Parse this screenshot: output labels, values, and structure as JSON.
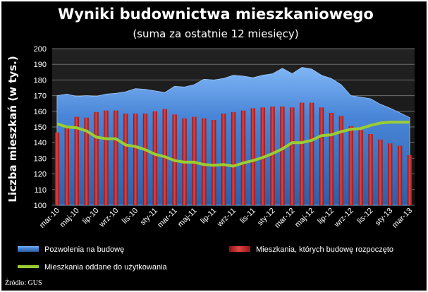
{
  "chart_data": {
    "type": "bar+area+line",
    "title": "Wyniki budownictwa mieszkaniowego",
    "subtitle": "(suma za ostatnie 12 miesięcy)",
    "ylabel": "Liczba mieszkań (w tys.)",
    "xlabel": "",
    "ylim": [
      100,
      200
    ],
    "yticks": [
      "100",
      "110",
      "120",
      "130",
      "140",
      "150",
      "160",
      "170",
      "180",
      "190",
      "200"
    ],
    "grid": true,
    "categories": [
      "mar-10",
      "kwi-10",
      "maj-10",
      "cze-10",
      "lip-10",
      "sie-10",
      "wrz-10",
      "paź-10",
      "lis-10",
      "gru-10",
      "sty-11",
      "lut-11",
      "mar-11",
      "kwi-11",
      "maj-11",
      "cze-11",
      "lip-11",
      "sie-11",
      "wrz-11",
      "paź-11",
      "lis-11",
      "gru-11",
      "sty-12",
      "lut-12",
      "mar-12",
      "kwi-12",
      "maj-12",
      "cze-12",
      "lip-12",
      "sie-12",
      "wrz-12",
      "paź-12",
      "lis-12",
      "gru-12",
      "sty-13",
      "lut-13",
      "mar-13"
    ],
    "x_tick_labels": [
      "mar-10",
      "maj-10",
      "lip-10",
      "wrz-10",
      "lis-10",
      "sty-11",
      "mar-11",
      "maj-11",
      "lip-11",
      "wrz-11",
      "lis-11",
      "sty-12",
      "mar-12",
      "maj-12",
      "lip-12",
      "wrz-12",
      "lis-12",
      "sty-13",
      "mar-13"
    ],
    "series": [
      {
        "name": "Pozwolenia na budowę",
        "type": "area",
        "color": "#4f8fe0",
        "values": [
          170,
          171,
          169.5,
          170,
          169.5,
          171,
          171.5,
          172.5,
          174.5,
          174,
          173,
          172,
          176,
          175.5,
          177,
          180.5,
          180,
          181,
          183,
          182.5,
          181.5,
          183,
          184,
          187.5,
          184,
          188,
          187,
          183,
          181,
          177,
          170,
          169,
          168,
          164.5,
          162,
          159,
          156
        ]
      },
      {
        "name": "Mieszkania, których budowę rozpoczęto",
        "type": "bar",
        "color": "#d62e2e",
        "values": [
          146.5,
          150,
          156.5,
          156,
          159.5,
          160.5,
          160.5,
          158.5,
          158.5,
          158.5,
          160,
          161.5,
          158,
          155.5,
          156.5,
          155.5,
          154.5,
          158.5,
          159.5,
          160.5,
          162,
          162.5,
          163,
          163,
          162.5,
          165.5,
          165.5,
          162.5,
          159,
          157,
          150.5,
          148,
          145.5,
          142,
          139.5,
          138,
          132
        ]
      },
      {
        "name": "Mieszkania oddane do użytkowania",
        "type": "line",
        "color": "#9acd32",
        "values": [
          152,
          150,
          149.5,
          147.5,
          143.5,
          142.5,
          142.5,
          138.5,
          137.5,
          135.5,
          132.5,
          131,
          128.5,
          127.5,
          127.5,
          126,
          125.5,
          126,
          125,
          127,
          128.5,
          130.5,
          133,
          136,
          140,
          140,
          141.5,
          144.5,
          145,
          147,
          148.5,
          149,
          151,
          152.5,
          153,
          153,
          153
        ]
      }
    ],
    "legend_position": "bottom",
    "source": "Źródło: GUS"
  }
}
